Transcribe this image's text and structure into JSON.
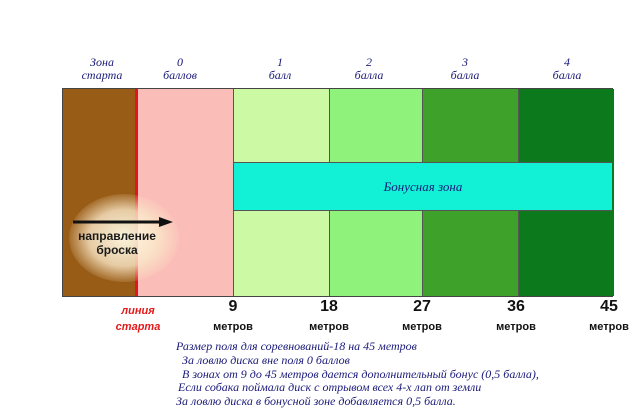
{
  "zones": [
    {
      "line1": "Зона",
      "line2": "старта",
      "color": "#995c16"
    },
    {
      "line1": "0",
      "line2": "баллов",
      "color": "#fbbdb8"
    },
    {
      "line1": "1",
      "line2": "балл",
      "color": "#ccfaa4"
    },
    {
      "line1": "2",
      "line2": "балла",
      "color": "#8ff27a"
    },
    {
      "line1": "3",
      "line2": "балла",
      "color": "#3da12a"
    },
    {
      "line1": "4",
      "line2": "балла",
      "color": "#0c7a1c"
    }
  ],
  "bonus_zone": {
    "label": "Бонусная зона",
    "color": "#12f0d6"
  },
  "throw_direction": {
    "line1": "направление",
    "line2": "броска"
  },
  "start_line": {
    "line1": "линия",
    "line2": "старта",
    "color": "#e4141c"
  },
  "distance_marks": [
    {
      "value": "9",
      "unit": "метров"
    },
    {
      "value": "18",
      "unit": "метров"
    },
    {
      "value": "27",
      "unit": "метров"
    },
    {
      "value": "36",
      "unit": "метров"
    },
    {
      "value": "45",
      "unit": "метров"
    }
  ],
  "notes": [
    "Размер поля для соревнований-18 на 45 метров",
    "За ловлю диска вне поля 0 баллов",
    "В зонах от 9 до 45 метров дается дополнительный бонус (0,5 балла),",
    "Если собака поймала диск с отрывом всех 4-х лап от земли",
    "За ловлю диска в бонусной зоне добавляется 0,5 балла."
  ]
}
